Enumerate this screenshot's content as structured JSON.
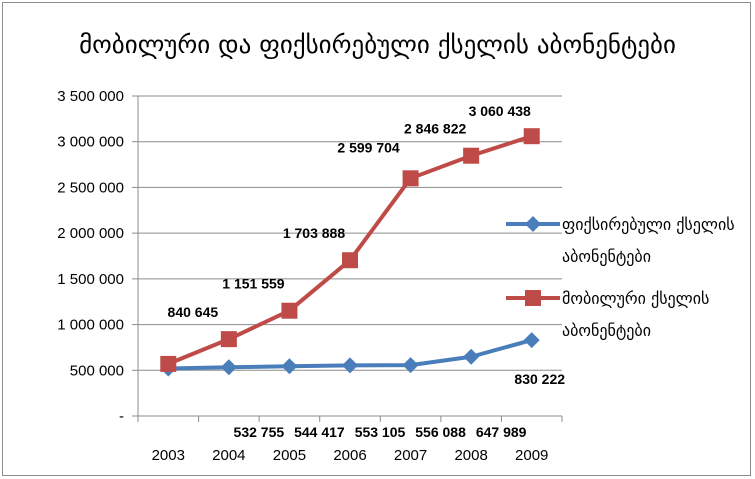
{
  "chart_data": {
    "type": "line",
    "title": "მობილური და ფიქსირებული ქსელის აბონენტები",
    "xlabel": "",
    "ylabel": "",
    "categories": [
      "2003",
      "2004",
      "2005",
      "2006",
      "2007",
      "2008",
      "2009"
    ],
    "ylim": [
      0,
      3500000
    ],
    "yticks": [
      0,
      500000,
      1000000,
      1500000,
      2000000,
      2500000,
      3000000,
      3500000
    ],
    "ytick_labels": [
      "-",
      "500 000",
      "1 000 000",
      "1 500 000",
      "2 000 000",
      "2 500 000",
      "3 000 000",
      "3 500 000"
    ],
    "grid": "horizontal",
    "legend_position": "right",
    "series": [
      {
        "name": "ფიქსირებული ქსელის აბონენტები",
        "legend_lines": [
          "ფიქსირებული ქსელის",
          "აბონენტები"
        ],
        "color": "#4a7ebb",
        "marker": "diamond",
        "values": [
          520000,
          532755,
          544417,
          553105,
          556088,
          647989,
          830222
        ],
        "labels": [
          "",
          "532 755",
          "544 417",
          "553 105",
          "556 088",
          "647 989",
          "830 222"
        ]
      },
      {
        "name": "მობილური ქსელის აბონენტები",
        "legend_lines": [
          "მობილური ქსელის",
          "აბონენტები"
        ],
        "color": "#be4b48",
        "marker": "square",
        "values": [
          570000,
          840645,
          1151559,
          1703888,
          2599704,
          2846822,
          3060438
        ],
        "labels": [
          "",
          "840 645",
          "1 151 559",
          "1 703 888",
          "2 599 704",
          "2 846 822",
          "3 060 438"
        ]
      }
    ]
  }
}
